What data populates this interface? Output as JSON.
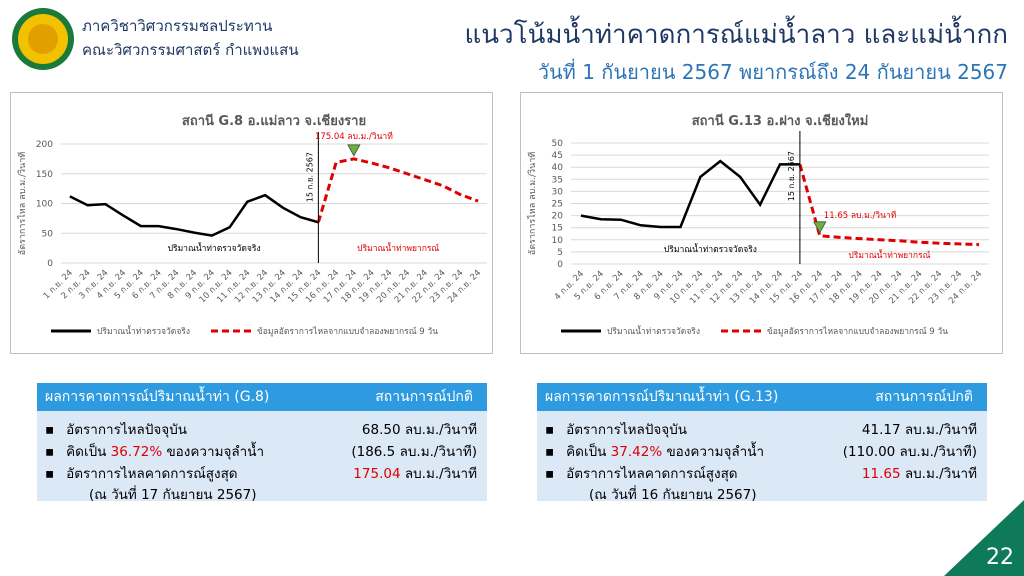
{
  "header": {
    "department": "ภาควิชาวิศวกรรมชลประทาน",
    "faculty": "คณะวิศวกรรมศาสตร์ กำแพงแสน",
    "title": "แนวโน้มน้ำท่าคาดการณ์แม่น้ำลาว และแม่น้ำกก",
    "subtitle": "วันที่ 1 กันยายน 2567 พยากรณ์ถึง 24 กันยายน 2567"
  },
  "chart_data": [
    {
      "type": "line",
      "title": "สถานี G.8 อ.แม่ลาว จ.เชียงราย",
      "y_label": "อัตราการไหล ลบ.ม./วินาที",
      "categories": [
        "1 ก.ย. 24",
        "2 ก.ย. 24",
        "3 ก.ย. 24",
        "4 ก.ย. 24",
        "5 ก.ย. 24",
        "6 ก.ย. 24",
        "7 ก.ย. 24",
        "8 ก.ย. 24",
        "9 ก.ย. 24",
        "10 ก.ย. 24",
        "11 ก.ย. 24",
        "12 ก.ย. 24",
        "13 ก.ย. 24",
        "14 ก.ย. 24",
        "15 ก.ย. 24",
        "16 ก.ย. 24",
        "17 ก.ย. 24",
        "18 ก.ย. 24",
        "19 ก.ย. 24",
        "20 ก.ย. 24",
        "21 ก.ย. 24",
        "22 ก.ย. 24",
        "23 ก.ย. 24",
        "24 ก.ย. 24"
      ],
      "series": [
        {
          "name": "ปริมาณน้ำท่าตรวจวัดจริง",
          "color": "#000000",
          "dash": false,
          "values": [
            112,
            97,
            99,
            80,
            62,
            62,
            57,
            51,
            46,
            60,
            103,
            114,
            93,
            77,
            68.5,
            null,
            null,
            null,
            null,
            null,
            null,
            null,
            null,
            null
          ]
        },
        {
          "name": "ข้อมูลอัตราการไหลจากแบบจำลองพยากรณ์ 9 วัน",
          "color": "#e00000",
          "dash": true,
          "values": [
            null,
            null,
            null,
            null,
            null,
            null,
            null,
            null,
            null,
            null,
            null,
            null,
            null,
            null,
            68.5,
            169,
            175.04,
            168,
            160,
            150,
            140,
            130,
            115,
            104
          ]
        }
      ],
      "ylim": [
        0,
        200
      ],
      "yticks": [
        0,
        50,
        100,
        150,
        200
      ],
      "vline": {
        "label": "15 ก.ย. 2567",
        "category": "15 ก.ย. 24"
      },
      "annotation": {
        "text": "175.04 ลบ.ม./วินาที",
        "category": "17 ก.ย. 24",
        "color": "#e00000"
      },
      "region_labels": [
        "ปริมาณน้ำท่าตรวจวัดจริง",
        "ปริมาณน้ำท่าพยากรณ์"
      ]
    },
    {
      "type": "line",
      "title": "สถานี G.13 อ.ฝาง จ.เชียงใหม่",
      "y_label": "อัตราการไหล ลบ.ม./วินาที",
      "categories": [
        "4 ก.ย. 24",
        "5 ก.ย. 24",
        "6 ก.ย. 24",
        "7 ก.ย. 24",
        "8 ก.ย. 24",
        "9 ก.ย. 24",
        "10 ก.ย. 24",
        "11 ก.ย. 24",
        "12 ก.ย. 24",
        "13 ก.ย. 24",
        "14 ก.ย. 24",
        "15 ก.ย. 24",
        "16 ก.ย. 24",
        "17 ก.ย. 24",
        "18 ก.ย. 24",
        "19 ก.ย. 24",
        "20 ก.ย. 24",
        "21 ก.ย. 24",
        "22 ก.ย. 24",
        "23 ก.ย. 24",
        "24 ก.ย. 24"
      ],
      "series": [
        {
          "name": "ปริมาณน้ำท่าตรวจวัดจริง",
          "color": "#000000",
          "dash": false,
          "values": [
            20,
            18.5,
            18.3,
            16,
            15.3,
            15.3,
            36,
            42.5,
            36,
            24.5,
            41.17,
            41.17,
            null,
            null,
            null,
            null,
            null,
            null,
            null,
            null,
            null
          ]
        },
        {
          "name": "ข้อมูลอัตราการไหลจากแบบจำลองพยากรณ์ 9 วัน",
          "color": "#e00000",
          "dash": true,
          "values": [
            null,
            null,
            null,
            null,
            null,
            null,
            null,
            null,
            null,
            null,
            null,
            41.17,
            11.65,
            11,
            10.5,
            10,
            9.6,
            9,
            8.6,
            8.3,
            8
          ]
        }
      ],
      "ylim": [
        0,
        50
      ],
      "yticks": [
        0,
        5,
        10,
        15,
        20,
        25,
        30,
        35,
        40,
        45,
        50
      ],
      "vline": {
        "label": "15 ก.ย. 2567",
        "category": "15 ก.ย. 24"
      },
      "annotation": {
        "text": "11.65 ลบ.ม./วินาที",
        "category": "16 ก.ย. 24",
        "color": "#e00000"
      },
      "region_labels": [
        "ปริมาณน้ำท่าตรวจวัดจริง",
        "ปริมาณน้ำท่าพยากรณ์"
      ]
    }
  ],
  "boxes": [
    {
      "title": "ผลการคาดการณ์ปริมาณน้ำท่า (G.8)",
      "status": "สถานการณ์ปกติ",
      "rows": [
        {
          "left": [
            "อัตราการไหลปัจจุบัน"
          ],
          "right": [
            "68.50 ลบ.ม./วินาที"
          ]
        },
        {
          "left": [
            "คิดเป็น ",
            "36.72%",
            " ของความจุลำน้ำ"
          ],
          "right": [
            "(186.5 ลบ.ม./วินาที)"
          ]
        },
        {
          "left": [
            "อัตราการไหลคาดการณ์สูงสุด"
          ],
          "right": [
            "175.04",
            " ลบ.ม./วินาที"
          ]
        }
      ],
      "note": "(ณ วันที่ 17 กันยายน 2567)"
    },
    {
      "title": "ผลการคาดการณ์ปริมาณน้ำท่า (G.13)",
      "status": "สถานการณ์ปกติ",
      "rows": [
        {
          "left": [
            "อัตราการไหลปัจจุบัน"
          ],
          "right": [
            "41.17 ลบ.ม./วินาที"
          ]
        },
        {
          "left": [
            "คิดเป็น ",
            "37.42%",
            " ของความจุลำน้ำ"
          ],
          "right": [
            "(110.00 ลบ.ม./วินาที)"
          ]
        },
        {
          "left": [
            "อัตราการไหลคาดการณ์สูงสุด"
          ],
          "right": [
            "11.65",
            " ลบ.ม./วินาที"
          ]
        }
      ],
      "note": "(ณ วันที่ 16 กันยายน 2567)"
    }
  ],
  "page_number": "22"
}
